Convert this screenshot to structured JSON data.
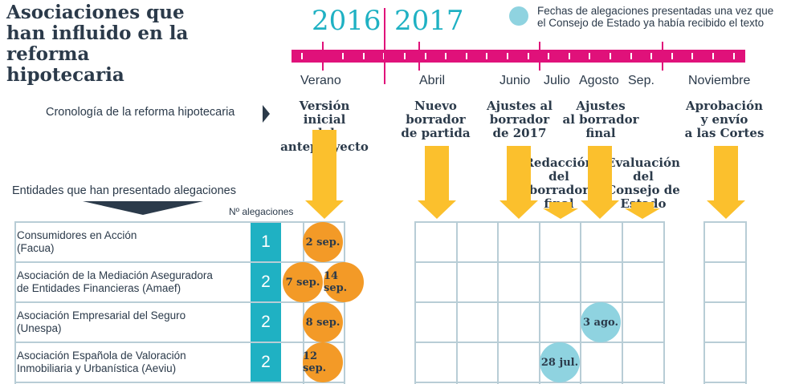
{
  "title": "Asociaciones que han influido en la reforma hipotecaria",
  "years": [
    "2016",
    "2017"
  ],
  "legend": "Fechas de alegaciones presentadas una vez que el Consejo de Estado ya había recibido el texto",
  "months": [
    "Verano",
    "Abril",
    "Junio",
    "Julio",
    "Agosto",
    "Sep.",
    "Noviembre"
  ],
  "cronologia_label": "Cronología de la reforma hipotecaria",
  "phases": [
    "Versión inicial\ndel anteproyecto",
    "Nuevo\nborrador\nde partida",
    "Ajustes al\nborrador\nde 2017",
    "Redacción\ndel borrador\nfinal",
    "Ajustes\nal borrador\nfinal",
    "Evaluación del\nConsejo de\nEstado",
    "Aprobación\ny envío\na las Cortes"
  ],
  "entidades_label": "Entidades que han presentado alegaciones",
  "n_alegaciones_label": "Nº alegaciones",
  "entities": [
    {
      "name": "Consumidores en Acción\n(Facua)",
      "count": "1",
      "dates": [
        "2 sep."
      ]
    },
    {
      "name": "Asociación de la Mediación Aseguradora\nde Entidades Financieras (Amaef)",
      "count": "2",
      "dates": [
        "7 sep.",
        "14 sep."
      ]
    },
    {
      "name": "Asociación Empresarial del Seguro\n(Unespa)",
      "count": "2",
      "dates": [
        "8 sep.",
        "3 ago."
      ]
    },
    {
      "name": "Asociación Española de Valoración\nInmobiliaria y Urbanística (Aeviu)",
      "count": "2",
      "dates": [
        "12 sep.",
        "28 jul."
      ]
    }
  ],
  "colors": {
    "accent": "#e0117a",
    "teal": "#1fb1c3",
    "orange": "#f39a27",
    "yellow": "#fbc02d",
    "light_cyan": "#8fd3e0",
    "grid": "#b8cdd6",
    "text": "#2b3a4a"
  }
}
